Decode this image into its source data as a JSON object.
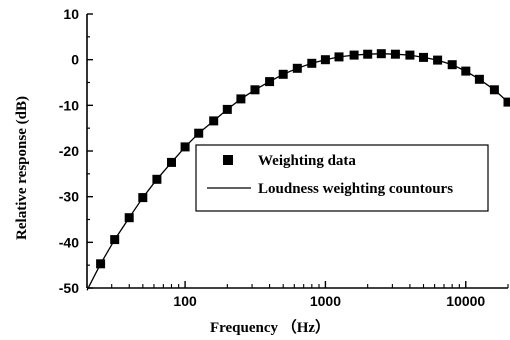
{
  "chart_data": {
    "type": "scatter",
    "xlabel": "Frequency （Hz）",
    "ylabel": "Relative   response  (dB)",
    "xscale": "log",
    "xlim": [
      20,
      20000
    ],
    "ylim": [
      -50,
      10
    ],
    "yticks": [
      "10",
      "0",
      "-10",
      "-20",
      "-30",
      "-40",
      "-50"
    ],
    "xticks": [
      "100",
      "1000",
      "10000"
    ],
    "legend_position": "center-right",
    "grid": false,
    "series": [
      {
        "name": "Weighting data",
        "kind": "markers",
        "color": "#000000",
        "x": [
          25,
          31.5,
          40,
          50,
          63,
          80,
          100,
          125,
          160,
          200,
          250,
          315,
          400,
          500,
          630,
          800,
          1000,
          1250,
          1600,
          2000,
          2500,
          3150,
          4000,
          5000,
          6300,
          8000,
          10000,
          12500,
          16000,
          20000
        ],
        "y": [
          -44.7,
          -39.4,
          -34.6,
          -30.2,
          -26.2,
          -22.5,
          -19.1,
          -16.1,
          -13.4,
          -10.9,
          -8.6,
          -6.6,
          -4.8,
          -3.2,
          -1.9,
          -0.8,
          0.0,
          0.6,
          1.0,
          1.2,
          1.3,
          1.2,
          1.0,
          0.5,
          -0.1,
          -1.1,
          -2.5,
          -4.3,
          -6.6,
          -9.3
        ]
      },
      {
        "name": "Loudness weighting countours",
        "kind": "line",
        "color": "#000000",
        "x": [
          20,
          25,
          31.5,
          40,
          50,
          63,
          80,
          100,
          125,
          160,
          200,
          250,
          315,
          400,
          500,
          630,
          800,
          1000,
          1250,
          1600,
          2000,
          2500,
          3150,
          4000,
          5000,
          6300,
          8000,
          10000,
          12500,
          16000,
          20000
        ],
        "y": [
          -50.5,
          -44.7,
          -39.4,
          -34.6,
          -30.2,
          -26.2,
          -22.5,
          -19.1,
          -16.1,
          -13.4,
          -10.9,
          -8.6,
          -6.6,
          -4.8,
          -3.2,
          -1.9,
          -0.8,
          0.0,
          0.6,
          1.0,
          1.2,
          1.3,
          1.2,
          1.0,
          0.5,
          -0.1,
          -1.1,
          -2.5,
          -4.3,
          -6.6,
          -9.3
        ]
      }
    ]
  }
}
